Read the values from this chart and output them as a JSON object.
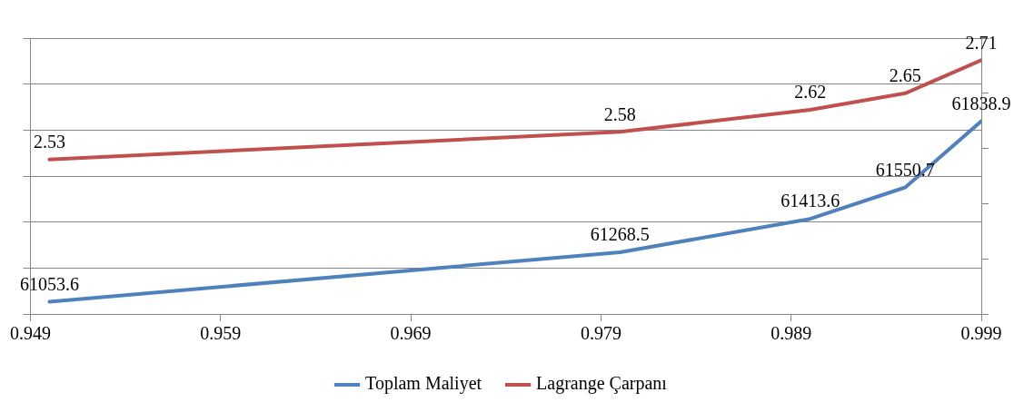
{
  "chart_data": {
    "type": "line",
    "x": [
      0.95,
      0.98,
      0.99,
      0.995,
      0.999
    ],
    "series": [
      {
        "name": "Toplam Maliyet",
        "color": "#4f81bd",
        "values": [
          61053.6,
          61268.5,
          61413.6,
          61550.7,
          61838.9
        ]
      },
      {
        "name": "Lagrange Çarpanı",
        "color": "#c0504d",
        "values": [
          2.53,
          2.58,
          2.62,
          2.65,
          2.71
        ],
        "axis": "y2"
      }
    ],
    "xlim": [
      0.949,
      0.999
    ],
    "xticks": [
      0.949,
      0.959,
      0.969,
      0.979,
      0.989,
      0.999
    ],
    "ylim": [
      61000,
      62200
    ],
    "yticks": [
      {
        "value": 61000,
        "label": null
      },
      {
        "value": 61200,
        "label": null
      },
      {
        "value": 61400,
        "label": null
      },
      {
        "value": 61600,
        "label": null
      },
      {
        "value": 61800,
        "label": null
      },
      {
        "value": 62000,
        "label": null
      },
      {
        "value": 62200,
        "label": null
      }
    ],
    "y2lim": [
      2.25,
      2.75
    ],
    "y2ticks": [
      {
        "value": 2.25,
        "label": null
      },
      {
        "value": 2.35,
        "label": null
      },
      {
        "value": 2.45,
        "label": null
      },
      {
        "value": 2.55,
        "label": null
      },
      {
        "value": 2.65,
        "label": null
      },
      {
        "value": 2.75,
        "label": null
      }
    ],
    "grid": "y",
    "legend": "bottom",
    "tick_labels": "x",
    "data_labels": true,
    "marker": "none",
    "line_style": "solid"
  }
}
